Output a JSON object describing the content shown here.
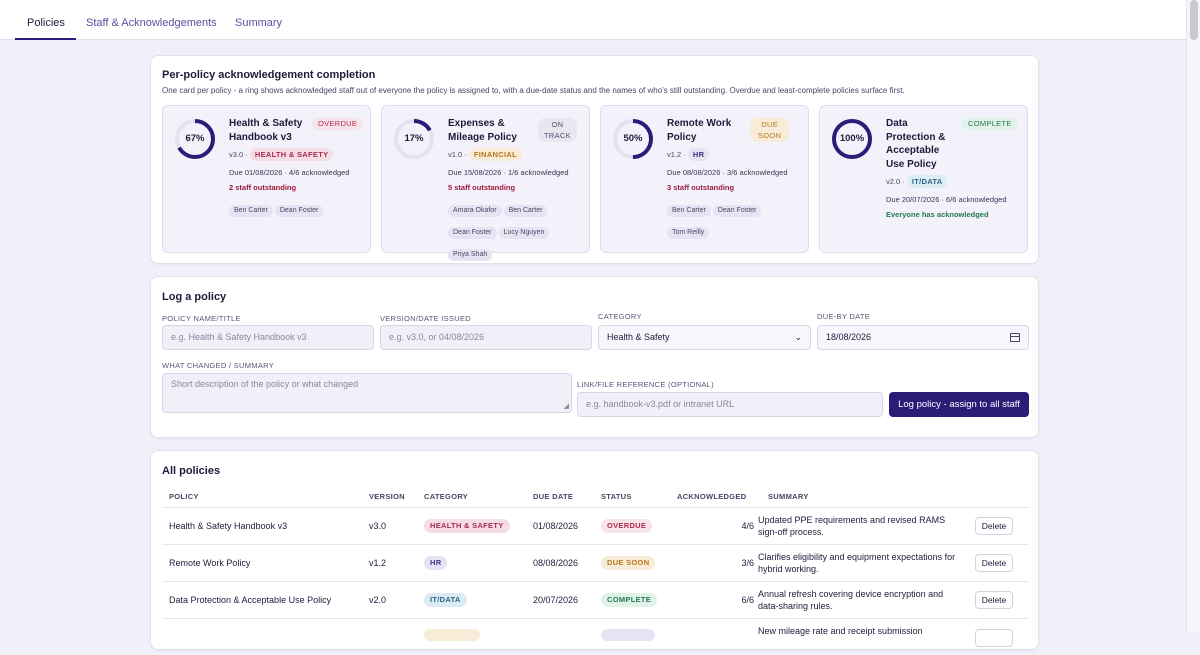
{
  "tabs": [
    {
      "label": "Policies",
      "active": true
    },
    {
      "label": "Staff & Acknowledgements",
      "active": false
    },
    {
      "label": "Summary",
      "active": false
    }
  ],
  "completion": {
    "title": "Per-policy acknowledgement completion",
    "subtitle": "One card per policy - a ring shows acknowledged staff out of everyone the policy is assigned to, with a due-date status and the names of who's still outstanding. Overdue and least-complete policies surface first.",
    "cards": [
      {
        "title_lines": [
          "Health & Safety",
          "Handbook v3"
        ],
        "percent": 67,
        "percent_label": "67%",
        "status": "OVERDUE",
        "version": "v3.0 ·",
        "category": "HEALTH & SAFETY",
        "due": "Due 01/08/2026 · 4/6 acknowledged",
        "outstanding": "2 staff outstanding",
        "names": [
          "Ben Carter",
          "Dean Foster"
        ]
      },
      {
        "title_lines": [
          "Expenses &",
          "Mileage Policy"
        ],
        "percent": 17,
        "percent_label": "17%",
        "status_lines": [
          "ON",
          "TRACK"
        ],
        "version": "v1.0 ·",
        "category": "FINANCIAL",
        "due": "Due 15/08/2026 · 1/6 acknowledged",
        "outstanding": "5 staff outstanding",
        "names": [
          "Amara Okafor",
          "Ben Carter",
          "Dean Foster",
          "Lucy Nguyen",
          "Priya Shah"
        ]
      },
      {
        "title_lines": [
          "Remote Work",
          "Policy"
        ],
        "percent": 50,
        "percent_label": "50%",
        "status_lines": [
          "DUE",
          "SOON"
        ],
        "version": "v1.2 ·",
        "category": "HR",
        "due": "Due 08/08/2026 · 3/6 acknowledged",
        "outstanding": "3 staff outstanding",
        "names": [
          "Ben Carter",
          "Dean Foster",
          "Tom Reilly"
        ]
      },
      {
        "title_lines": [
          "Data",
          "Protection &",
          "Acceptable",
          "Use Policy"
        ],
        "percent": 100,
        "percent_label": "100%",
        "status": "COMPLETE",
        "version": "v2.0 ·",
        "category": "IT/DATA",
        "due": "Due 20/07/2026 · 6/6 acknowledged",
        "outstanding": "Everyone has acknowledged",
        "names": []
      }
    ]
  },
  "log_form": {
    "title": "Log a policy",
    "name_label": "POLICY NAME/TITLE",
    "name_placeholder": "e.g. Health & Safety Handbook v3",
    "version_label": "VERSION/DATE ISSUED",
    "version_placeholder": "e.g. v3.0, or 04/08/2026",
    "category_label": "CATEGORY",
    "category_value": "Health & Safety",
    "due_label": "DUE-BY DATE",
    "due_value": "18/08/2026",
    "summary_label": "WHAT CHANGED / SUMMARY",
    "summary_placeholder": "Short description of the policy or what changed",
    "link_label": "LINK/FILE REFERENCE (OPTIONAL)",
    "link_placeholder": "e.g. handbook-v3.pdf or intranet URL",
    "submit_label": "Log policy - assign to all staff"
  },
  "all_policies": {
    "title": "All policies",
    "headers": [
      "POLICY",
      "VERSION",
      "CATEGORY",
      "DUE DATE",
      "STATUS",
      "ACKNOWLEDGED",
      "SUMMARY"
    ],
    "delete_label": "Delete",
    "rows": [
      {
        "policy": "Health & Safety Handbook v3",
        "version": "v3.0",
        "category": "HEALTH & SAFETY",
        "due": "01/08/2026",
        "status": "OVERDUE",
        "ack": "4/6",
        "summary": "Updated PPE requirements and revised RAMS sign-off process."
      },
      {
        "policy": "Remote Work Policy",
        "version": "v1.2",
        "category": "HR",
        "due": "08/08/2026",
        "status": "DUE SOON",
        "ack": "3/6",
        "summary": "Clarifies eligibility and equipment expectations for hybrid working."
      },
      {
        "policy": "Data Protection & Acceptable Use Policy",
        "version": "v2.0",
        "category": "IT/DATA",
        "due": "20/07/2026",
        "status": "COMPLETE",
        "ack": "6/6",
        "summary": "Annual refresh covering device encryption and data-sharing rules."
      },
      {
        "policy": "",
        "version": "",
        "category": "",
        "due": "",
        "status": "",
        "ack": "",
        "summary": "New mileage rate and receipt submission"
      }
    ]
  },
  "colors": {
    "accent": "#2a1d78",
    "overdue": "#b32a4d",
    "due_soon": "#b7791f",
    "complete": "#23794f"
  }
}
